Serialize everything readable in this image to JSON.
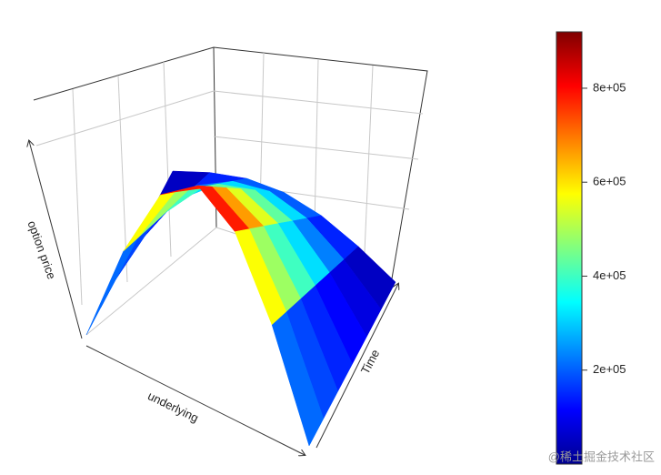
{
  "chart_data": {
    "type": "surface",
    "x_label": "underlying",
    "y_label": "Time",
    "z_label": "option price",
    "z": [
      [
        0,
        0,
        0,
        0,
        0,
        0,
        0
      ],
      [
        450000,
        387500,
        325000,
        262500,
        200000,
        137500,
        75000
      ],
      [
        779000,
        671000,
        563000,
        455000,
        346000,
        238000,
        130000
      ],
      [
        900000,
        775000,
        650000,
        525000,
        400000,
        275000,
        150000
      ],
      [
        779000,
        671000,
        563000,
        455000,
        346000,
        238000,
        130000
      ],
      [
        450000,
        387500,
        325000,
        262500,
        200000,
        137500,
        75000
      ],
      [
        0,
        0,
        0,
        0,
        0,
        0,
        0
      ]
    ],
    "zlim": [
      0,
      920000
    ],
    "colorbar_ticks": [
      {
        "value": 200000,
        "label": "2e+05"
      },
      {
        "value": 400000,
        "label": "4e+05"
      },
      {
        "value": 600000,
        "label": "6e+05"
      },
      {
        "value": 800000,
        "label": "8e+05"
      }
    ],
    "colormap": [
      "#00008f",
      "#0000ff",
      "#0080ff",
      "#00ffff",
      "#80ff80",
      "#ffff00",
      "#ff8000",
      "#ff0000",
      "#800000"
    ],
    "watermark": "@稀土掘金技术社区"
  }
}
